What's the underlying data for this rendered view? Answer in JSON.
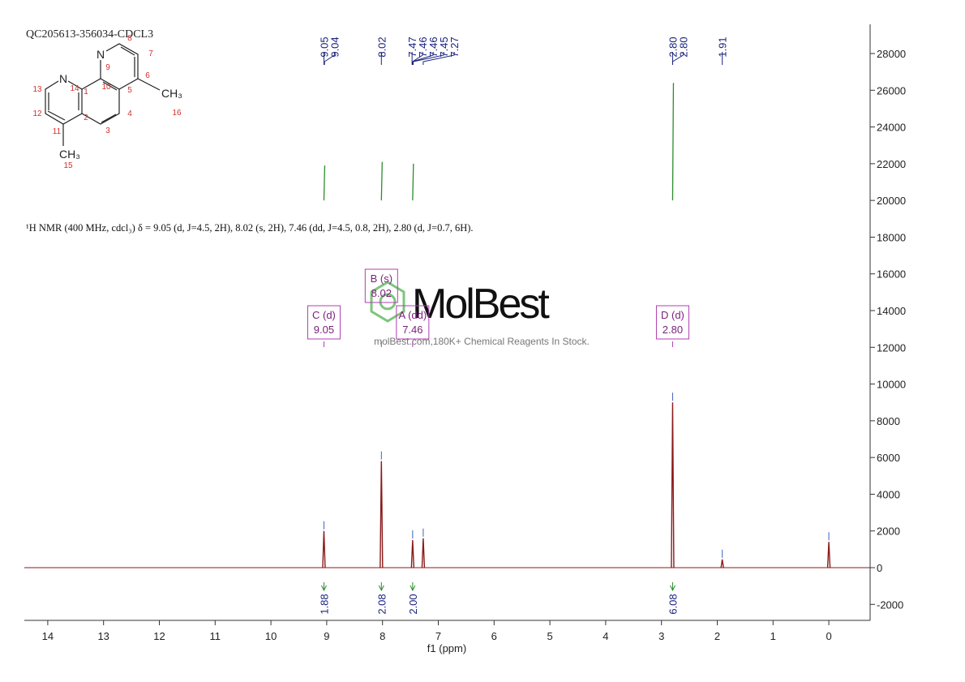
{
  "chart_data": {
    "type": "nmr",
    "title": "QC205613-356034-CDCL3",
    "xlabel": "f1 (ppm)",
    "description": "¹H NMR (400 MHz, cdcl₃) δ = 9.05 (d, J=4.5, 2H), 8.02 (s, 2H), 7.46 (dd, J=4.5, 0.8, 2H), 2.80 (d, J=0.7, 6H).",
    "watermark": "MolBest",
    "watermark_subtitle": "molBest.com,180K+ Chemical Reagents In Stock.",
    "color": "#8b1a1a",
    "inset_color": "#2e8b2e",
    "xlim": [
      14.42,
      -0.74
    ],
    "xticks": [
      14,
      13,
      12,
      11,
      10,
      9,
      8,
      7,
      6,
      5,
      4,
      3,
      2,
      1,
      0
    ],
    "ylim": [
      -2870,
      29590
    ],
    "yticks": [
      -2000,
      0,
      2000,
      4000,
      6000,
      8000,
      10000,
      12000,
      14000,
      16000,
      18000,
      20000,
      22000,
      24000,
      26000,
      28000
    ],
    "peaks": {
      "x": [
        9.05,
        8.02,
        7.46,
        7.27,
        2.8,
        1.91,
        0
      ],
      "values": [
        2000,
        5800,
        1500,
        1600,
        9000,
        450,
        1400
      ]
    },
    "inset_peaks": {
      "base": 20000,
      "x": [
        9.05,
        8.02,
        7.46,
        2.8
      ],
      "values": [
        21900,
        22100,
        22000,
        26400
      ]
    },
    "peak_labels": [
      9.05,
      9.04,
      8.02,
      7.47,
      7.46,
      7.46,
      7.45,
      7.27,
      {
        "value": 2.8,
        "label": "2.80"
      },
      {
        "value": 2.8,
        "label": "2.80"
      },
      1.91
    ],
    "multiplets": [
      {
        "name": "C (d)",
        "shift": 9.05,
        "shift_label": "9.05"
      },
      {
        "name": "B (s)",
        "shift": 8.02,
        "shift_label": "8.02"
      },
      {
        "name": "A (dd)",
        "shift": 7.46,
        "shift_label": "7.46"
      },
      {
        "name": "D (d)",
        "shift": 2.8,
        "shift_label": "2.80"
      }
    ],
    "integrals": {
      "x": [
        9.05,
        8.02,
        7.46,
        2.8
      ],
      "values": [
        1.88,
        2.08,
        2,
        6.08
      ],
      "value_labels": [
        "1.88",
        "2.08",
        "2.00",
        "6.08"
      ]
    },
    "structure": {
      "atoms": [
        "N",
        "N",
        "CH₃",
        "CH₃"
      ],
      "numbers": [
        14,
        1,
        2,
        11,
        12,
        13,
        10,
        5,
        4,
        3,
        9,
        8,
        7,
        6,
        16,
        15
      ]
    }
  }
}
